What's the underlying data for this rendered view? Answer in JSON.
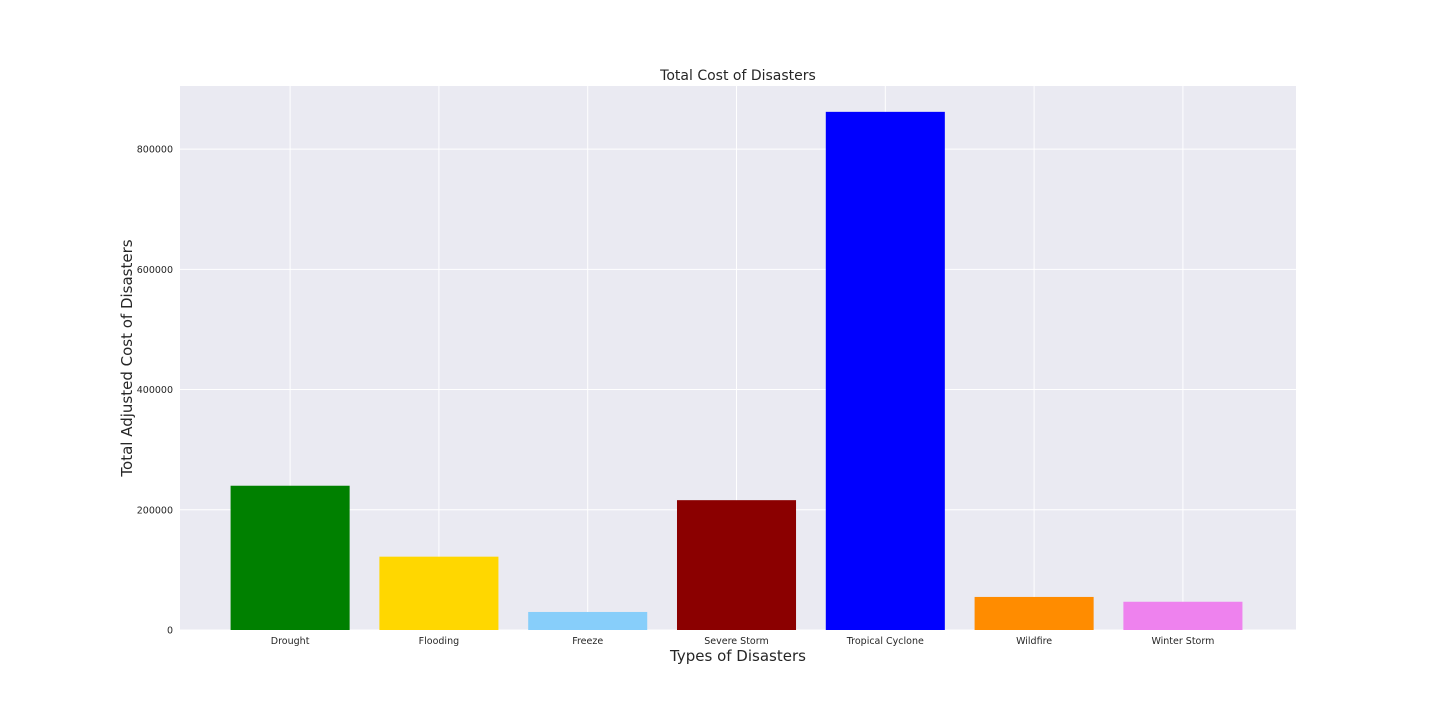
{
  "chart_data": {
    "type": "bar",
    "title": "Total Cost of Disasters",
    "xlabel": "Types of Disasters",
    "ylabel": "Total Adjusted Cost of Disasters",
    "categories": [
      "Drought",
      "Flooding",
      "Freeze",
      "Severe Storm",
      "Tropical Cyclone",
      "Wildfire",
      "Winter Storm"
    ],
    "values": [
      240000,
      122000,
      30000,
      216000,
      862000,
      55000,
      47000
    ],
    "colors": [
      "#008000",
      "#FFD700",
      "#87CEFA",
      "#8B0000",
      "#0000FF",
      "#FF8C00",
      "#EE82EE"
    ],
    "ylim": [
      0,
      905000
    ],
    "yticks": [
      0,
      200000,
      400000,
      600000,
      800000
    ],
    "grid": true,
    "background": "#EAEAF2",
    "grid_color": "#FFFFFF"
  }
}
